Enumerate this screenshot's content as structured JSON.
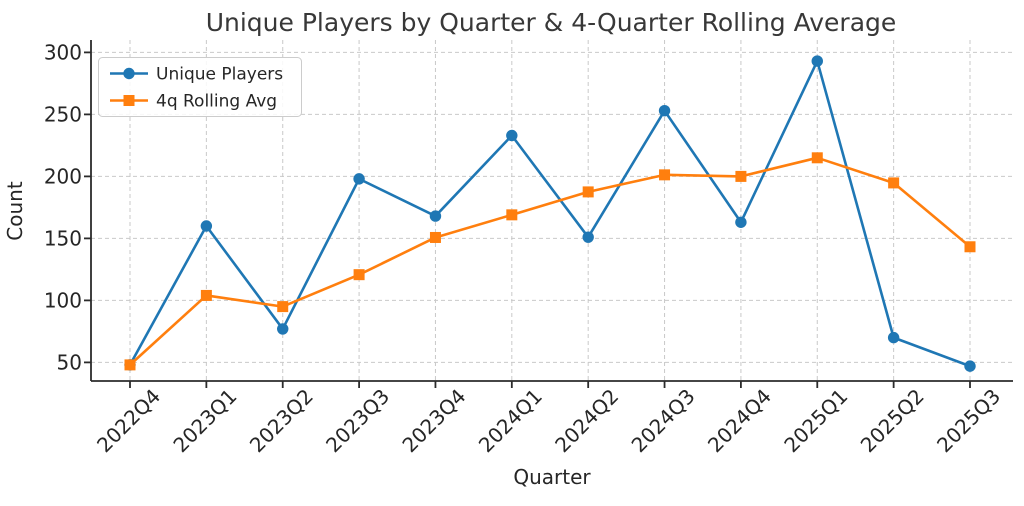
{
  "title": "Unique Players by Quarter & 4-Quarter Rolling Average",
  "chart_data": {
    "type": "line",
    "title": "Unique Players by Quarter & 4-Quarter Rolling Average",
    "xlabel": "Quarter",
    "ylabel": "Count",
    "categories": [
      "2022Q4",
      "2023Q1",
      "2023Q2",
      "2023Q3",
      "2023Q4",
      "2024Q1",
      "2024Q2",
      "2024Q3",
      "2024Q4",
      "2025Q1",
      "2025Q2",
      "2025Q3"
    ],
    "series": [
      {
        "name": "Unique Players",
        "marker": "circle",
        "color": "#1f77b4",
        "values": [
          48,
          160,
          77,
          198,
          168,
          233,
          151,
          253,
          163,
          293,
          70,
          47
        ]
      },
      {
        "name": "4q Rolling Avg",
        "marker": "square",
        "color": "#ff7f0e",
        "values": [
          48,
          104,
          95,
          120.75,
          150.75,
          169,
          187.5,
          201.25,
          200,
          215,
          194.75,
          143.25
        ]
      }
    ],
    "yticks": [
      50,
      100,
      150,
      200,
      250,
      300
    ],
    "ylim": [
      35,
      310
    ],
    "grid": true,
    "grid_style": "dashed",
    "legend_position": "upper-left",
    "style": {
      "grid_color": "#c9c9c9",
      "spine_color": "#2b2b2b",
      "text_color": "#262626",
      "legend_border_color": "#cccccc",
      "background_color": "#ffffff"
    }
  }
}
